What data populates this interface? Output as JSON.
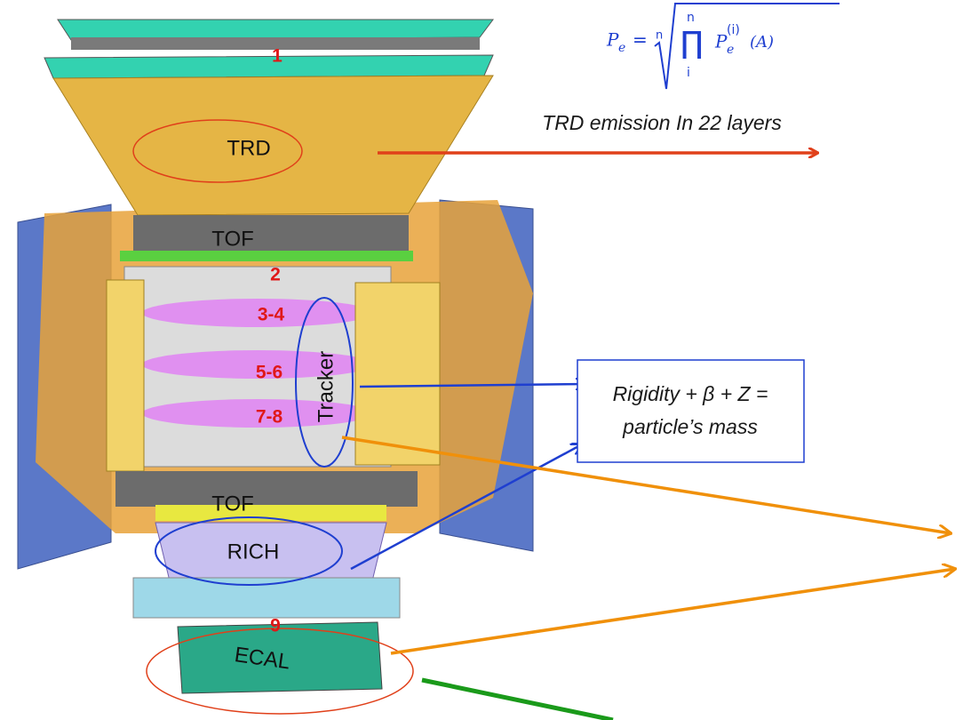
{
  "formula": {
    "lhs": "P",
    "lhs_sub": "e",
    "equals": "=",
    "root_index": "n",
    "product": "∏",
    "prod_upper": "n",
    "prod_lower": "i",
    "term": "P",
    "term_sub": "e",
    "term_sup": "(i)",
    "arg": "(A)"
  },
  "detector_labels": {
    "trd": "TRD",
    "tof_upper": "TOF",
    "tracker": "Tracker",
    "tof_lower": "TOF",
    "rich": "RICH",
    "ecal": "ECAL"
  },
  "layer_numbers": [
    "1",
    "2",
    "3-4",
    "5-6",
    "7-8",
    "9"
  ],
  "annotations": {
    "trd_note": "TRD emission In 22 layers",
    "mass_note_line1": "Rigidity + β + Z =",
    "mass_note_line2": "particle’s mass"
  }
}
